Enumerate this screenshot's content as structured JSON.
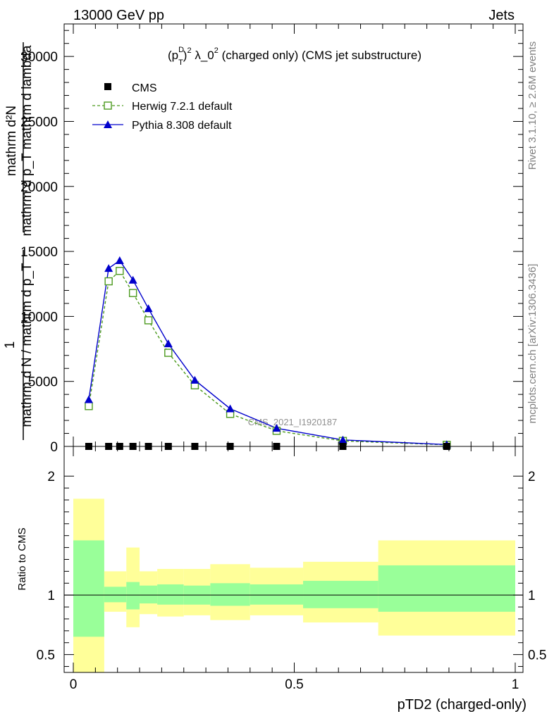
{
  "header": {
    "left": "13000 GeV pp",
    "right": "Jets"
  },
  "side": {
    "rivet": "Rivet 3.1.10, ≥ 2.6M events",
    "mcplots": "mcplots.cern.ch [arXiv:1306.3436]"
  },
  "chart_data": [
    {
      "type": "line",
      "title_parts": {
        "open": "(p",
        "sup_d": "D",
        "sub_t": "T",
        "close": ")",
        "sup_2": "2",
        "lambda": " λ_0",
        "sup_2b": "2",
        "rest": " (charged only) (CMS jet substructure)"
      },
      "ylabel": {
        "numerator": "mathrm d²N",
        "denominator": "mathrm d p_T mathrm d lambda",
        "numerator_sub": "T",
        "fraction_left_num": "1",
        "fraction_left_den": "mathrm d N / mathrm d p",
        "raw_extra": "mathrm"
      },
      "ylabel_text": {
        "line1": "mathrm d²N",
        "line2": "mathrm d p_T mathrm d lambda",
        "line3": "1",
        "line4": "mathrm d N / mathrm d p_T"
      },
      "ylim": [
        0,
        32500
      ],
      "yticks": [
        0,
        5000,
        10000,
        15000,
        20000,
        25000,
        30000
      ],
      "ytick_labels": [
        "0",
        "5000",
        "10000",
        "15000",
        "20000",
        "25000",
        "30000"
      ],
      "xlim": [
        0,
        1
      ],
      "watermark": "CMS_2021_I1920187",
      "legend": [
        {
          "name": "CMS"
        },
        {
          "name": "Herwig 7.2.1 default"
        },
        {
          "name": "Pythia 8.308 default"
        }
      ],
      "legend_position": "top-left",
      "colors": {
        "cms": "#000000",
        "herwig": "#4c9a1e",
        "pythia": "#0000cc"
      },
      "series": [
        {
          "name": "CMS",
          "x": [
            0.035,
            0.08,
            0.105,
            0.135,
            0.17,
            0.215,
            0.275,
            0.355,
            0.46,
            0.61,
            0.845
          ],
          "values": [
            0,
            0,
            0,
            0,
            0,
            0,
            0,
            0,
            0,
            0,
            0
          ]
        },
        {
          "name": "Herwig 7.2.1 default",
          "x": [
            0.035,
            0.08,
            0.105,
            0.135,
            0.17,
            0.215,
            0.275,
            0.355,
            0.46,
            0.61,
            0.845
          ],
          "values": [
            3100,
            12700,
            13500,
            11800,
            9700,
            7200,
            4700,
            2500,
            1200,
            420,
            120
          ]
        },
        {
          "name": "Pythia 8.308 default",
          "x": [
            0.035,
            0.08,
            0.105,
            0.135,
            0.17,
            0.215,
            0.275,
            0.355,
            0.46,
            0.61,
            0.845
          ],
          "values": [
            3600,
            13700,
            14300,
            12800,
            10600,
            7900,
            5100,
            2900,
            1400,
            500,
            140
          ]
        }
      ]
    },
    {
      "type": "area",
      "ylabel": "Ratio to CMS",
      "xlabel": "pTD2 (charged-only)",
      "xlim": [
        0,
        1
      ],
      "ylim": [
        0.35,
        2.25
      ],
      "yticks": [
        0.5,
        1,
        2
      ],
      "ytick_labels": [
        "0.5",
        "1",
        "2"
      ],
      "xticks": [
        0,
        0.5,
        1
      ],
      "xtick_labels": [
        "0",
        "0.5",
        "1"
      ],
      "colors": {
        "stat": "#99ff99",
        "total": "#ffff99",
        "ref": "#000000"
      },
      "bins": [
        {
          "x0": 0.0,
          "x1": 0.07,
          "inner_low": 0.65,
          "inner_high": 1.46,
          "outer_low": 0.33,
          "outer_high": 1.81
        },
        {
          "x0": 0.07,
          "x1": 0.12,
          "inner_low": 0.94,
          "inner_high": 1.07,
          "outer_low": 0.86,
          "outer_high": 1.2
        },
        {
          "x0": 0.12,
          "x1": 0.15,
          "inner_low": 0.88,
          "inner_high": 1.11,
          "outer_low": 0.73,
          "outer_high": 1.4
        },
        {
          "x0": 0.15,
          "x1": 0.19,
          "inner_low": 0.93,
          "inner_high": 1.08,
          "outer_low": 0.84,
          "outer_high": 1.2
        },
        {
          "x0": 0.19,
          "x1": 0.25,
          "inner_low": 0.92,
          "inner_high": 1.09,
          "outer_low": 0.82,
          "outer_high": 1.22
        },
        {
          "x0": 0.25,
          "x1": 0.31,
          "inner_low": 0.92,
          "inner_high": 1.08,
          "outer_low": 0.83,
          "outer_high": 1.22
        },
        {
          "x0": 0.31,
          "x1": 0.4,
          "inner_low": 0.91,
          "inner_high": 1.1,
          "outer_low": 0.79,
          "outer_high": 1.26
        },
        {
          "x0": 0.4,
          "x1": 0.52,
          "inner_low": 0.92,
          "inner_high": 1.09,
          "outer_low": 0.83,
          "outer_high": 1.23
        },
        {
          "x0": 0.52,
          "x1": 0.69,
          "inner_low": 0.89,
          "inner_high": 1.12,
          "outer_low": 0.77,
          "outer_high": 1.28
        },
        {
          "x0": 0.69,
          "x1": 1.0,
          "inner_low": 0.86,
          "inner_high": 1.25,
          "outer_low": 0.66,
          "outer_high": 1.46
        }
      ]
    }
  ]
}
